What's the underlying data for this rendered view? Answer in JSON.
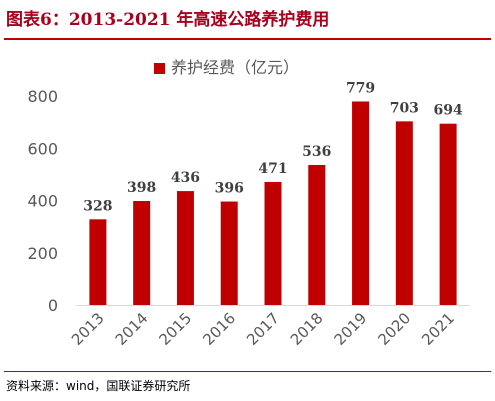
{
  "header": {
    "title": "图表6：2013-2021 年高速公路养护费用"
  },
  "footer": {
    "source": "资料来源：wind，国联证券研究所"
  },
  "colors": {
    "title": "#a8001c",
    "bar": "#c00000",
    "rule": "#c00000",
    "axis_text": "#595959",
    "value_text": "#404040"
  },
  "chart_data": {
    "type": "bar",
    "categories": [
      "2013",
      "2014",
      "2015",
      "2016",
      "2017",
      "2018",
      "2019",
      "2020",
      "2021"
    ],
    "series": [
      {
        "name": "养护经费（亿元）",
        "values": [
          328,
          398,
          436,
          396,
          471,
          536,
          779,
          703,
          694
        ]
      }
    ],
    "ylim": [
      0,
      800
    ],
    "yticks": [
      0,
      200,
      400,
      600,
      800
    ],
    "xlabel": "",
    "ylabel": "",
    "legend": "top-center",
    "grid": false,
    "data_labels": true,
    "x_tick_rotation": "diagonal"
  }
}
